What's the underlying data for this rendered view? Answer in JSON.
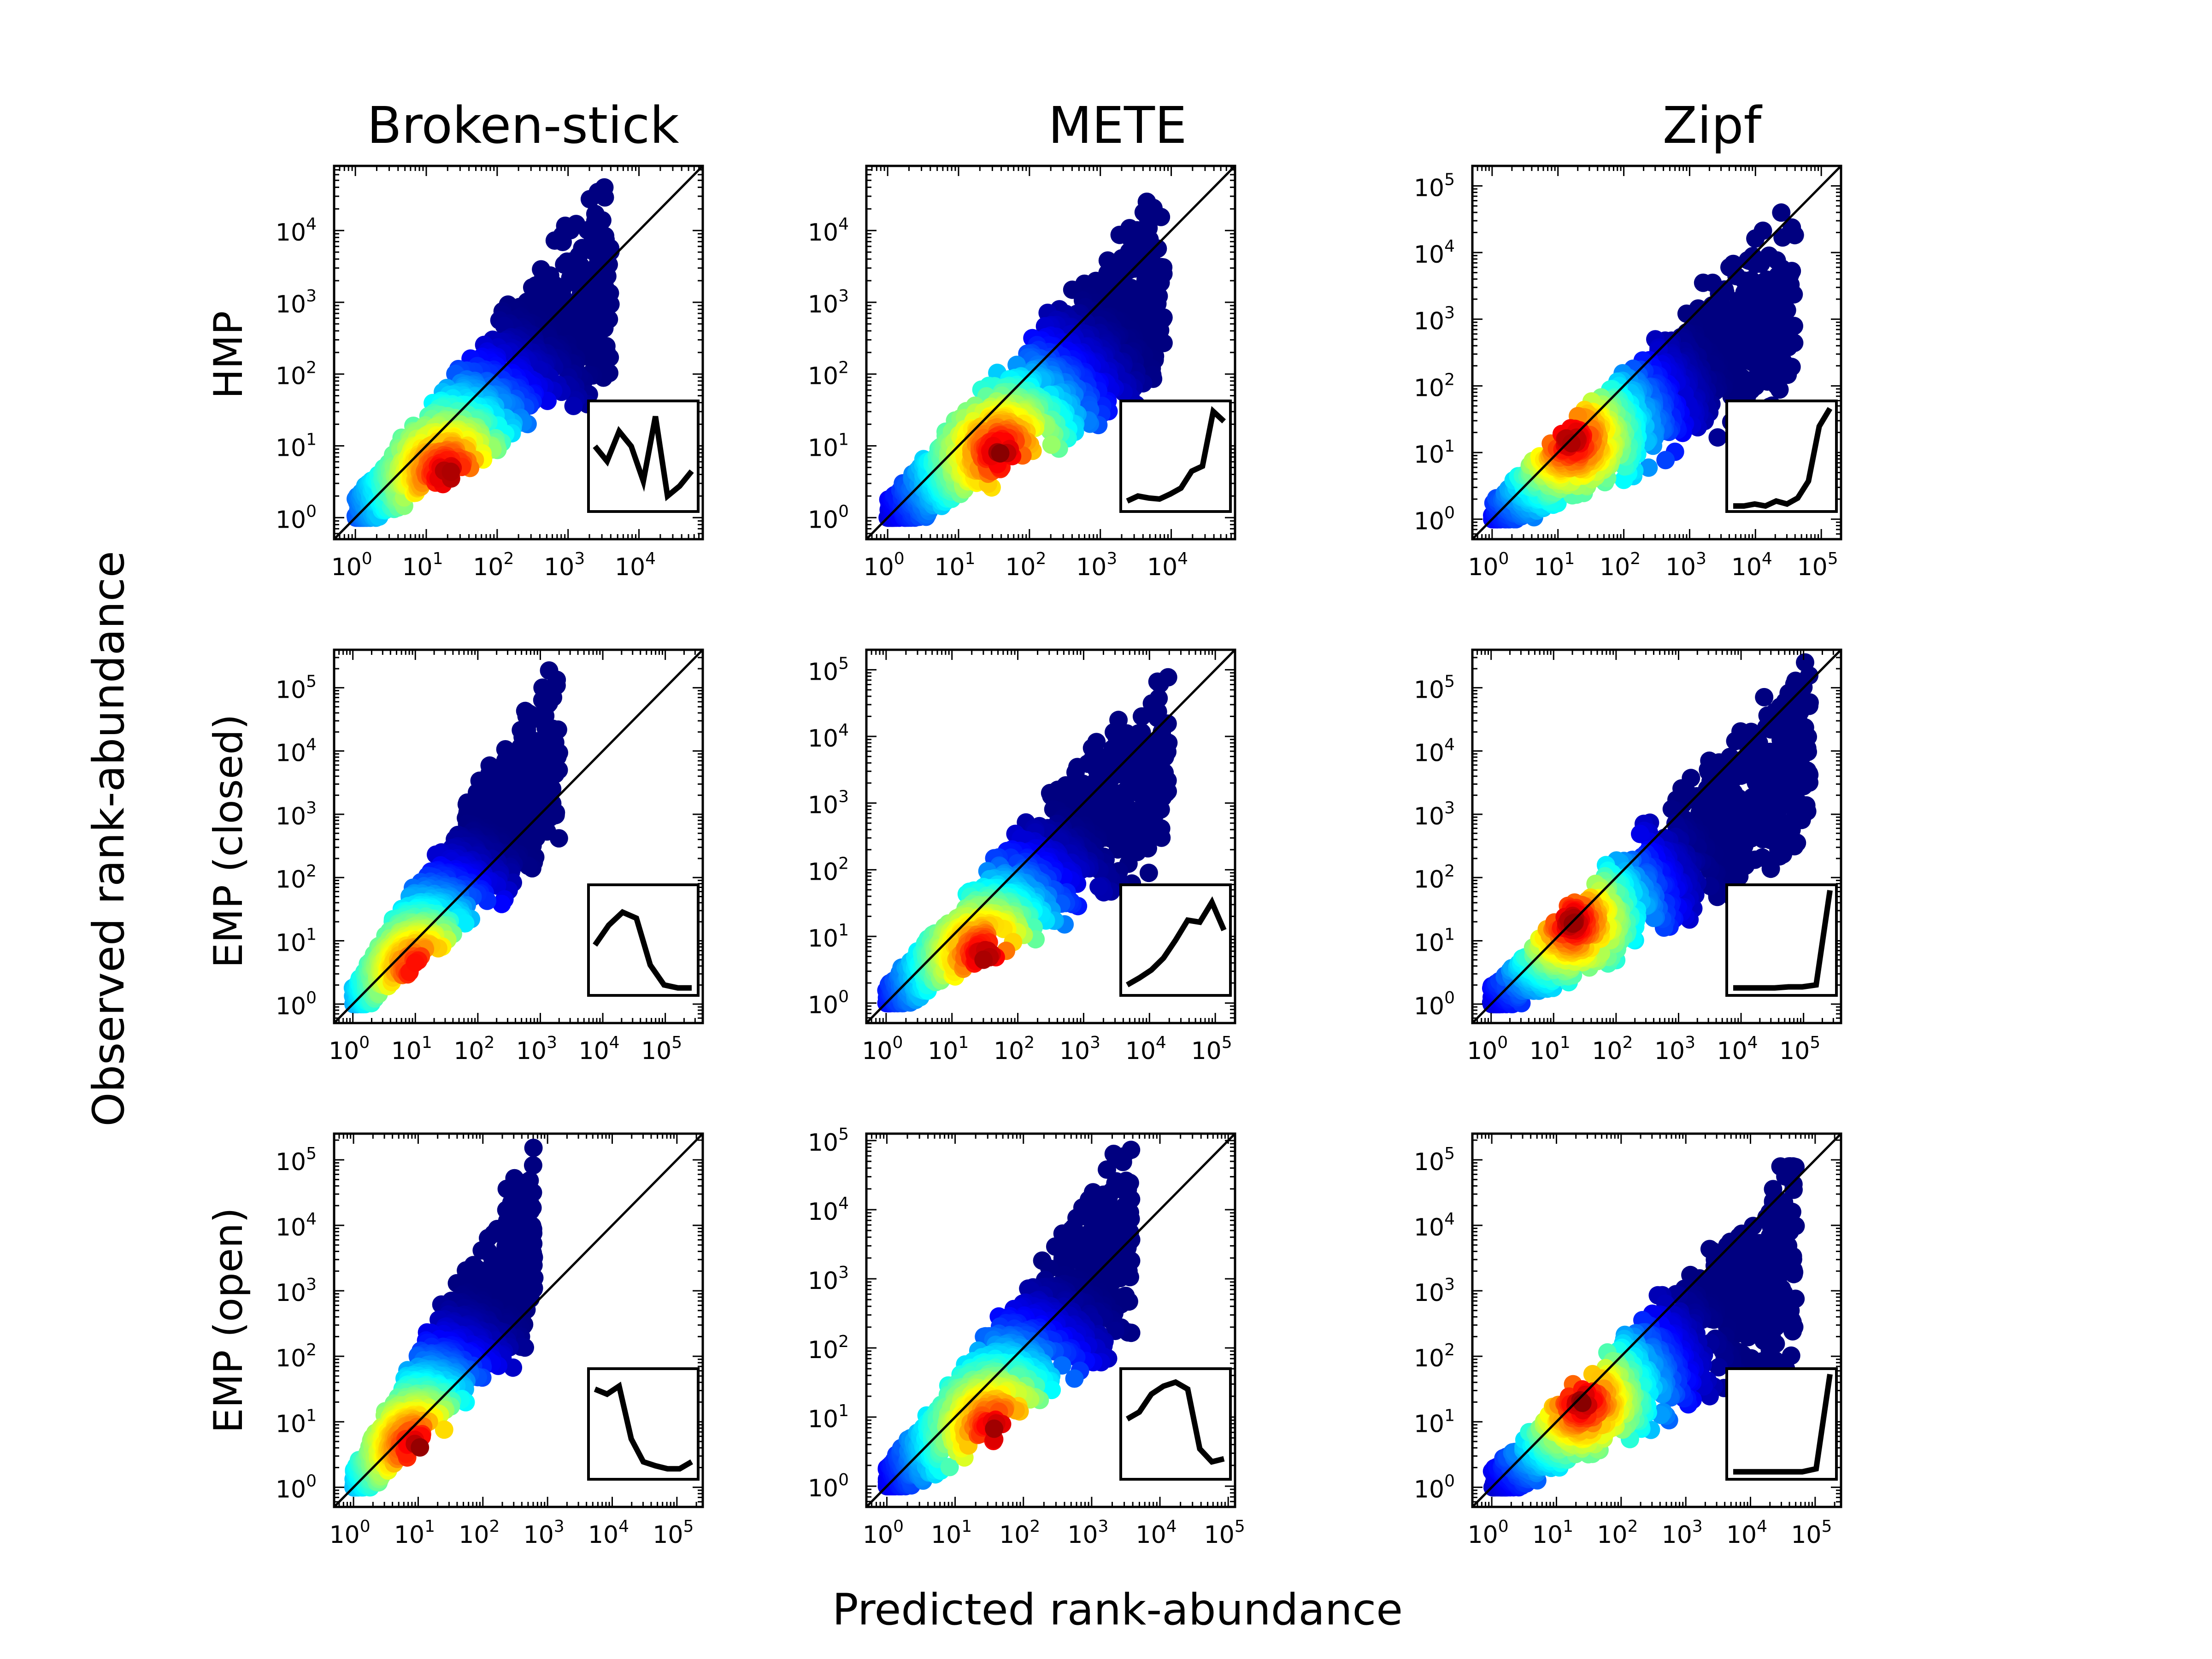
{
  "figure": {
    "x_axis_label": "Predicted rank-abundance",
    "y_axis_label": "Observed rank-abundance",
    "column_titles": [
      "Broken-stick",
      "METE",
      "Zipf"
    ],
    "row_labels": [
      "HMP",
      "EMP (closed)",
      "EMP (open)"
    ]
  },
  "chart_data": [
    {
      "type": "scatter",
      "model": "Broken-stick",
      "dataset": "HMP",
      "log_scale": true,
      "x_ticks": [
        0,
        1,
        2,
        3,
        4
      ],
      "y_ticks": [
        0,
        1,
        2,
        3,
        4
      ],
      "xlim_exp": [
        -0.3,
        4.9
      ],
      "ylim_exp": [
        -0.3,
        4.9
      ],
      "one_to_one_line": true,
      "cloud_center_exp": [
        1.3,
        0.6
      ],
      "cloud_extent_exp": [
        [
          0,
          3.6
        ],
        [
          0,
          4.6
        ]
      ],
      "inset_values": [
        0.6,
        0.45,
        0.75,
        0.6,
        0.25,
        0.9,
        0.1,
        0.2,
        0.35
      ]
    },
    {
      "type": "scatter",
      "model": "METE",
      "dataset": "HMP",
      "log_scale": true,
      "x_ticks": [
        0,
        1,
        2,
        3,
        4
      ],
      "y_ticks": [
        0,
        1,
        2,
        3,
        4
      ],
      "xlim_exp": [
        -0.3,
        4.9
      ],
      "ylim_exp": [
        -0.3,
        4.9
      ],
      "one_to_one_line": true,
      "cloud_center_exp": [
        1.6,
        0.9
      ],
      "cloud_extent_exp": [
        [
          0,
          3.9
        ],
        [
          0,
          4.4
        ]
      ],
      "inset_values": [
        0.05,
        0.1,
        0.08,
        0.07,
        0.12,
        0.18,
        0.35,
        0.4,
        0.95,
        0.85
      ]
    },
    {
      "type": "scatter",
      "model": "Zipf",
      "dataset": "HMP",
      "log_scale": true,
      "x_ticks": [
        0,
        1,
        2,
        3,
        4,
        5
      ],
      "y_ticks": [
        0,
        1,
        2,
        3,
        4,
        5
      ],
      "xlim_exp": [
        -0.3,
        5.3
      ],
      "ylim_exp": [
        -0.3,
        5.3
      ],
      "one_to_one_line": true,
      "cloud_center_exp": [
        1.2,
        1.2
      ],
      "cloud_extent_exp": [
        [
          0,
          4.6
        ],
        [
          0,
          4.6
        ]
      ],
      "inset_values": [
        0,
        0,
        0.02,
        0,
        0.05,
        0.02,
        0.08,
        0.25,
        0.8,
        0.98
      ]
    },
    {
      "type": "scatter",
      "model": "Broken-stick",
      "dataset": "EMP (closed)",
      "log_scale": true,
      "x_ticks": [
        0,
        1,
        2,
        3,
        4,
        5
      ],
      "y_ticks": [
        0,
        1,
        2,
        3,
        4,
        5
      ],
      "xlim_exp": [
        -0.3,
        5.6
      ],
      "ylim_exp": [
        -0.3,
        5.6
      ],
      "one_to_one_line": true,
      "cloud_center_exp": [
        1.1,
        0.5
      ],
      "cloud_extent_exp": [
        [
          0,
          3.3
        ],
        [
          0,
          5.5
        ]
      ],
      "inset_values": [
        0.45,
        0.65,
        0.78,
        0.72,
        0.25,
        0.05,
        0.02,
        0.02
      ]
    },
    {
      "type": "scatter",
      "model": "METE",
      "dataset": "EMP (closed)",
      "log_scale": true,
      "x_ticks": [
        0,
        1,
        2,
        3,
        4,
        5
      ],
      "y_ticks": [
        0,
        1,
        2,
        3,
        4,
        5
      ],
      "xlim_exp": [
        -0.3,
        5.3
      ],
      "ylim_exp": [
        -0.3,
        5.3
      ],
      "one_to_one_line": true,
      "cloud_center_exp": [
        1.5,
        0.7
      ],
      "cloud_extent_exp": [
        [
          0,
          4.3
        ],
        [
          0,
          5.1
        ]
      ],
      "inset_values": [
        0.05,
        0.12,
        0.2,
        0.32,
        0.5,
        0.7,
        0.68,
        0.88,
        0.6
      ]
    },
    {
      "type": "scatter",
      "model": "Zipf",
      "dataset": "EMP (closed)",
      "log_scale": true,
      "x_ticks": [
        0,
        1,
        2,
        3,
        4,
        5
      ],
      "y_ticks": [
        0,
        1,
        2,
        3,
        4,
        5
      ],
      "xlim_exp": [
        -0.3,
        5.6
      ],
      "ylim_exp": [
        -0.3,
        5.6
      ],
      "one_to_one_line": true,
      "cloud_center_exp": [
        1.3,
        1.3
      ],
      "cloud_extent_exp": [
        [
          0,
          5.1
        ],
        [
          0,
          5.4
        ]
      ],
      "inset_values": [
        0.02,
        0.02,
        0.02,
        0.02,
        0.03,
        0.03,
        0.05,
        1.0
      ]
    },
    {
      "type": "scatter",
      "model": "Broken-stick",
      "dataset": "EMP (open)",
      "log_scale": true,
      "x_ticks": [
        0,
        1,
        2,
        3,
        4,
        5
      ],
      "y_ticks": [
        0,
        1,
        2,
        3,
        4,
        5
      ],
      "xlim_exp": [
        -0.3,
        5.4
      ],
      "ylim_exp": [
        -0.3,
        5.4
      ],
      "one_to_one_line": true,
      "cloud_center_exp": [
        1.0,
        0.6
      ],
      "cloud_extent_exp": [
        [
          0,
          2.8
        ],
        [
          0,
          5.2
        ]
      ],
      "inset_values": [
        0.85,
        0.8,
        0.88,
        0.35,
        0.12,
        0.08,
        0.05,
        0.05,
        0.12
      ]
    },
    {
      "type": "scatter",
      "model": "METE",
      "dataset": "EMP (open)",
      "log_scale": true,
      "x_ticks": [
        0,
        1,
        2,
        3,
        4,
        5
      ],
      "y_ticks": [
        0,
        1,
        2,
        3,
        4,
        5
      ],
      "xlim_exp": [
        -0.3,
        5.1
      ],
      "ylim_exp": [
        -0.3,
        5.1
      ],
      "one_to_one_line": true,
      "cloud_center_exp": [
        1.6,
        0.8
      ],
      "cloud_extent_exp": [
        [
          0,
          3.6
        ],
        [
          0,
          4.9
        ]
      ],
      "inset_values": [
        0.55,
        0.62,
        0.8,
        0.88,
        0.92,
        0.85,
        0.25,
        0.12,
        0.15
      ]
    },
    {
      "type": "scatter",
      "model": "Zipf",
      "dataset": "EMP (open)",
      "log_scale": true,
      "x_ticks": [
        0,
        1,
        2,
        3,
        4,
        5
      ],
      "y_ticks": [
        0,
        1,
        2,
        3,
        4,
        5
      ],
      "xlim_exp": [
        -0.3,
        5.4
      ],
      "ylim_exp": [
        -0.3,
        5.4
      ],
      "one_to_one_line": true,
      "cloud_center_exp": [
        1.4,
        1.3
      ],
      "cloud_extent_exp": [
        [
          0,
          4.7
        ],
        [
          0,
          4.9
        ]
      ],
      "inset_values": [
        0.02,
        0.02,
        0.02,
        0.02,
        0.02,
        0.02,
        0.05,
        1.0
      ]
    }
  ]
}
